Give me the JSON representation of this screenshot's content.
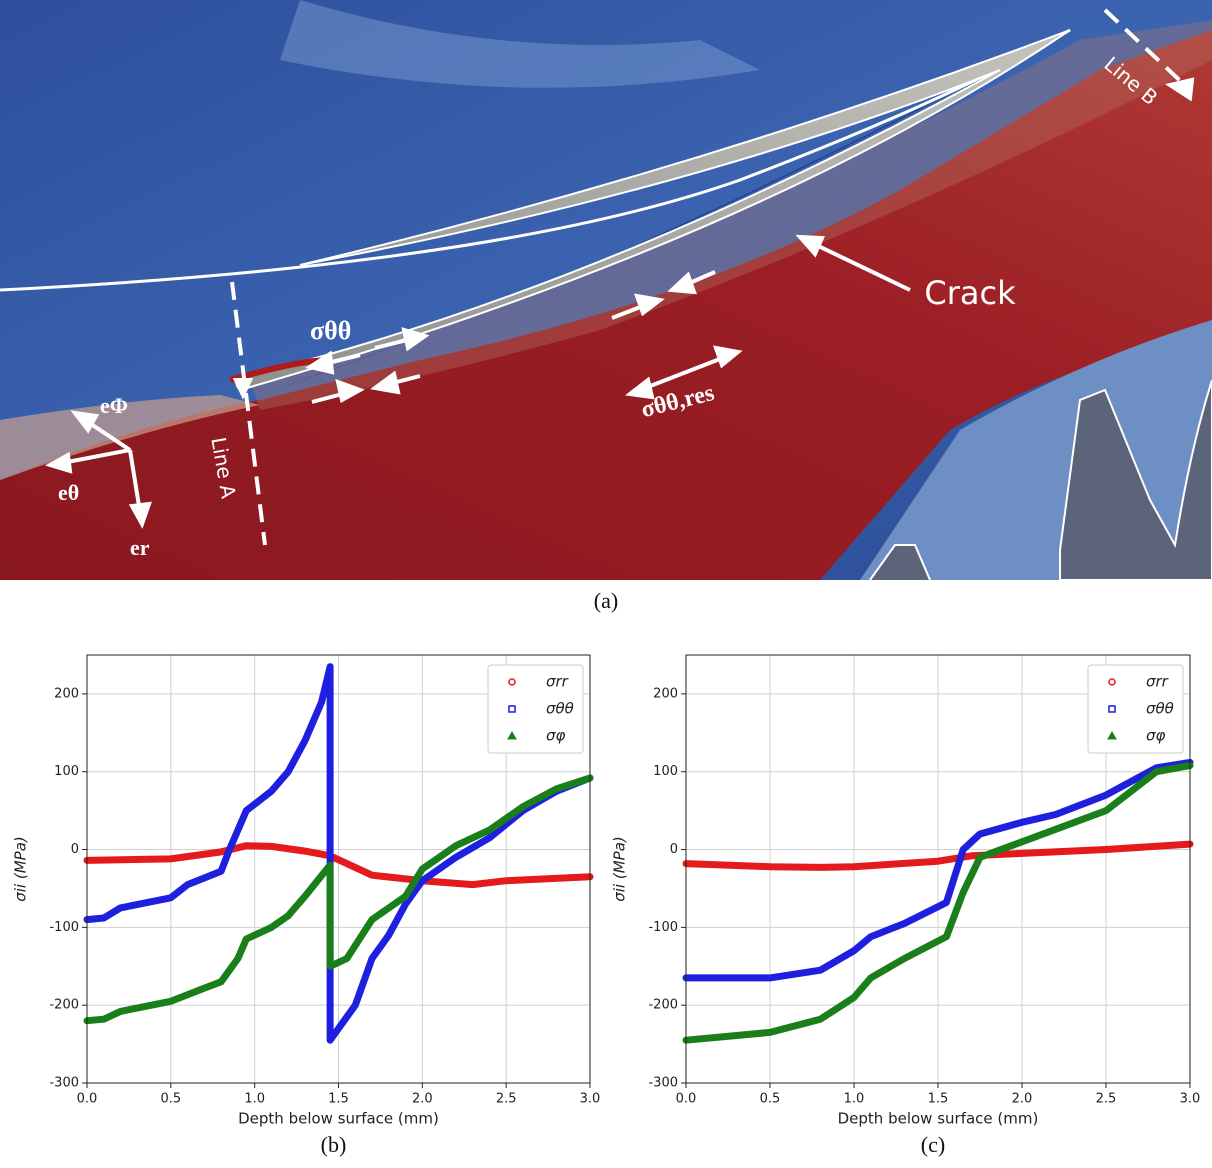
{
  "figure_a": {
    "crack": "Crack",
    "line_a": "Line A",
    "line_b": "Line B",
    "sigma_tt": "σθθ",
    "sigma_tt_res": "σθθ,res",
    "e_phi": "eΦ",
    "e_theta": "eθ",
    "e_r": "er",
    "caption": "(a)"
  },
  "chart_data": [
    {
      "type": "line",
      "caption": "(b)",
      "xlabel": "Depth below surface (mm)",
      "ylabel": "σii (MPa)",
      "xlim": [
        0,
        3
      ],
      "ylim": [
        -300,
        250
      ],
      "xticks": [
        {
          "value": 0,
          "label": "0.0"
        },
        0.5,
        {
          "value": 1,
          "label": "1.0"
        },
        1.5,
        {
          "value": 2,
          "label": "2.0"
        },
        2.5,
        {
          "value": 3,
          "label": "3.0"
        }
      ],
      "yticks": [
        -300,
        -200,
        -100,
        0,
        100,
        200
      ],
      "grid": true,
      "legend": "upper right",
      "series": [
        {
          "name": "σrr",
          "color": "#e41a1c",
          "marker": "circle",
          "x": [
            0,
            0.5,
            0.8,
            0.95,
            1.1,
            1.3,
            1.45,
            1.7,
            2.0,
            2.3,
            2.5,
            3.0
          ],
          "values": [
            -14,
            -12,
            -3,
            5,
            4,
            -2,
            -8,
            -33,
            -40,
            -45,
            -40,
            -35
          ]
        },
        {
          "name": "σθθ",
          "color": "#1f1fe0",
          "marker": "square",
          "x": [
            0,
            0.1,
            0.2,
            0.5,
            0.6,
            0.8,
            0.85,
            0.95,
            1.1,
            1.2,
            1.3,
            1.4,
            1.45,
            1.45,
            1.5,
            1.6,
            1.7,
            1.8,
            1.9,
            2.0,
            2.2,
            2.4,
            2.6,
            2.8,
            3.0
          ],
          "values": [
            -90,
            -88,
            -75,
            -62,
            -45,
            -28,
            0,
            50,
            75,
            100,
            140,
            190,
            235,
            -245,
            -230,
            -200,
            -140,
            -110,
            -70,
            -40,
            -10,
            15,
            50,
            75,
            92
          ]
        },
        {
          "name": "σφ",
          "color": "#1a7f1a",
          "marker": "triangle",
          "x": [
            0,
            0.1,
            0.2,
            0.5,
            0.7,
            0.8,
            0.9,
            0.95,
            1.1,
            1.2,
            1.3,
            1.45,
            1.45,
            1.55,
            1.7,
            1.9,
            2.0,
            2.2,
            2.4,
            2.6,
            2.8,
            3.0
          ],
          "values": [
            -220,
            -218,
            -208,
            -195,
            -178,
            -170,
            -140,
            -115,
            -100,
            -85,
            -60,
            -20,
            -150,
            -140,
            -90,
            -60,
            -25,
            5,
            25,
            55,
            78,
            92
          ]
        }
      ]
    },
    {
      "type": "line",
      "caption": "(c)",
      "xlabel": "Depth below surface (mm)",
      "ylabel": "σii (MPa)",
      "xlim": [
        0,
        3
      ],
      "ylim": [
        -300,
        250
      ],
      "xticks": [
        {
          "value": 0,
          "label": "0.0"
        },
        0.5,
        {
          "value": 1,
          "label": "1.0"
        },
        1.5,
        {
          "value": 2,
          "label": "2.0"
        },
        2.5,
        {
          "value": 3,
          "label": "3.0"
        }
      ],
      "yticks": [
        -300,
        -200,
        -100,
        0,
        100,
        200
      ],
      "grid": true,
      "legend": "upper right",
      "series": [
        {
          "name": "σrr",
          "color": "#e41a1c",
          "marker": "circle",
          "x": [
            0,
            0.5,
            0.8,
            1.0,
            1.5,
            1.7,
            2.0,
            2.5,
            3.0
          ],
          "values": [
            -18,
            -22,
            -23,
            -22,
            -15,
            -8,
            -5,
            0,
            7
          ]
        },
        {
          "name": "σθθ",
          "color": "#1f1fe0",
          "marker": "square",
          "x": [
            0,
            0.5,
            0.8,
            1.0,
            1.1,
            1.3,
            1.55,
            1.65,
            1.75,
            2.0,
            2.2,
            2.5,
            2.8,
            3.0
          ],
          "values": [
            -165,
            -165,
            -155,
            -130,
            -112,
            -95,
            -68,
            0,
            20,
            35,
            45,
            70,
            105,
            112
          ]
        },
        {
          "name": "σφ",
          "color": "#1a7f1a",
          "marker": "triangle",
          "x": [
            0,
            0.5,
            0.8,
            1.0,
            1.1,
            1.3,
            1.55,
            1.65,
            1.75,
            2.0,
            2.5,
            2.8,
            3.0
          ],
          "values": [
            -245,
            -235,
            -218,
            -190,
            -165,
            -140,
            -112,
            -55,
            -10,
            10,
            50,
            100,
            108
          ]
        }
      ]
    }
  ]
}
